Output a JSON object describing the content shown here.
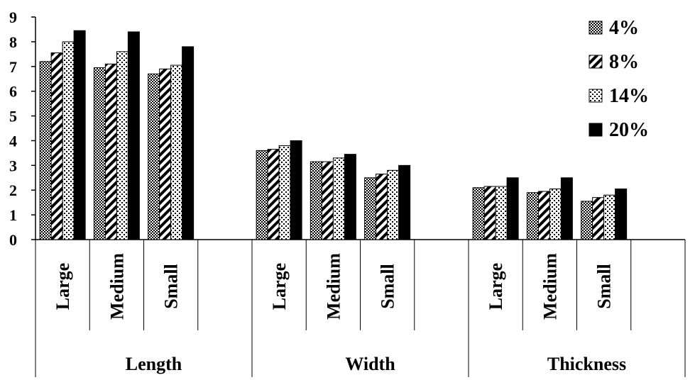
{
  "chart_data": {
    "type": "bar",
    "groups": [
      {
        "name": "Length",
        "categories": [
          "Large",
          "Medium",
          "Small"
        ]
      },
      {
        "name": "Width",
        "categories": [
          "Large",
          "Medium",
          "Small"
        ]
      },
      {
        "name": "Thickness",
        "categories": [
          "Large",
          "Medium",
          "Small"
        ]
      }
    ],
    "series": [
      {
        "name": "4%",
        "pattern": "dots",
        "values": [
          7.2,
          6.95,
          6.7,
          3.6,
          3.15,
          2.5,
          2.1,
          1.9,
          1.55
        ]
      },
      {
        "name": "8%",
        "pattern": "diagonal-stripes",
        "values": [
          7.55,
          7.1,
          6.9,
          3.65,
          3.15,
          2.65,
          2.15,
          1.95,
          1.7
        ]
      },
      {
        "name": "14%",
        "pattern": "sparse-dots",
        "values": [
          8.0,
          7.6,
          7.05,
          3.8,
          3.3,
          2.8,
          2.15,
          2.05,
          1.8
        ]
      },
      {
        "name": "20%",
        "pattern": "solid-black",
        "values": [
          8.45,
          8.4,
          7.8,
          4.0,
          3.45,
          3.0,
          2.5,
          2.5,
          2.05
        ]
      }
    ],
    "y_ticks": [
      "0",
      "1",
      "2",
      "3",
      "4",
      "5",
      "6",
      "7",
      "8",
      "9"
    ],
    "ylim": [
      0,
      9
    ],
    "grid": false,
    "legend_position": "top-right"
  }
}
